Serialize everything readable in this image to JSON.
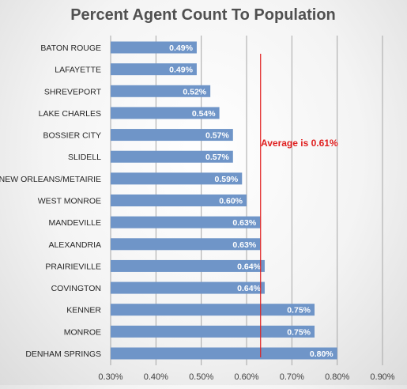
{
  "chart_data": {
    "type": "bar",
    "orientation": "horizontal",
    "title": "Percent Agent Count To Population",
    "categories": [
      "BATON ROUGE",
      "LAFAYETTE",
      "SHREVEPORT",
      "LAKE CHARLES",
      "BOSSIER CITY",
      "SLIDELL",
      "NEW ORLEANS/METAIRIE",
      "WEST MONROE",
      "MANDEVILLE",
      "ALEXANDRIA",
      "PRAIRIEVILLE",
      "COVINGTON",
      "KENNER",
      "MONROE",
      "DENHAM SPRINGS"
    ],
    "values": [
      0.49,
      0.49,
      0.52,
      0.54,
      0.57,
      0.57,
      0.59,
      0.6,
      0.63,
      0.63,
      0.64,
      0.64,
      0.75,
      0.75,
      0.8
    ],
    "data_labels": [
      "0.49%",
      "0.49%",
      "0.52%",
      "0.54%",
      "0.57%",
      "0.57%",
      "0.59%",
      "0.60%",
      "0.63%",
      "0.63%",
      "0.64%",
      "0.64%",
      "0.75%",
      "0.75%",
      "0.80%"
    ],
    "xlim": [
      0.3,
      0.9
    ],
    "x_ticks": [
      0.3,
      0.4,
      0.5,
      0.6,
      0.7,
      0.8,
      0.9
    ],
    "x_tick_labels": [
      "0.30%",
      "0.40%",
      "0.50%",
      "0.60%",
      "0.70%",
      "0.80%",
      "0.90%"
    ],
    "grid": "vertical",
    "bar_color": "#6f95c8",
    "average_line": {
      "value": 0.61,
      "label": "Average is 0.61%",
      "color": "#e02020"
    }
  }
}
